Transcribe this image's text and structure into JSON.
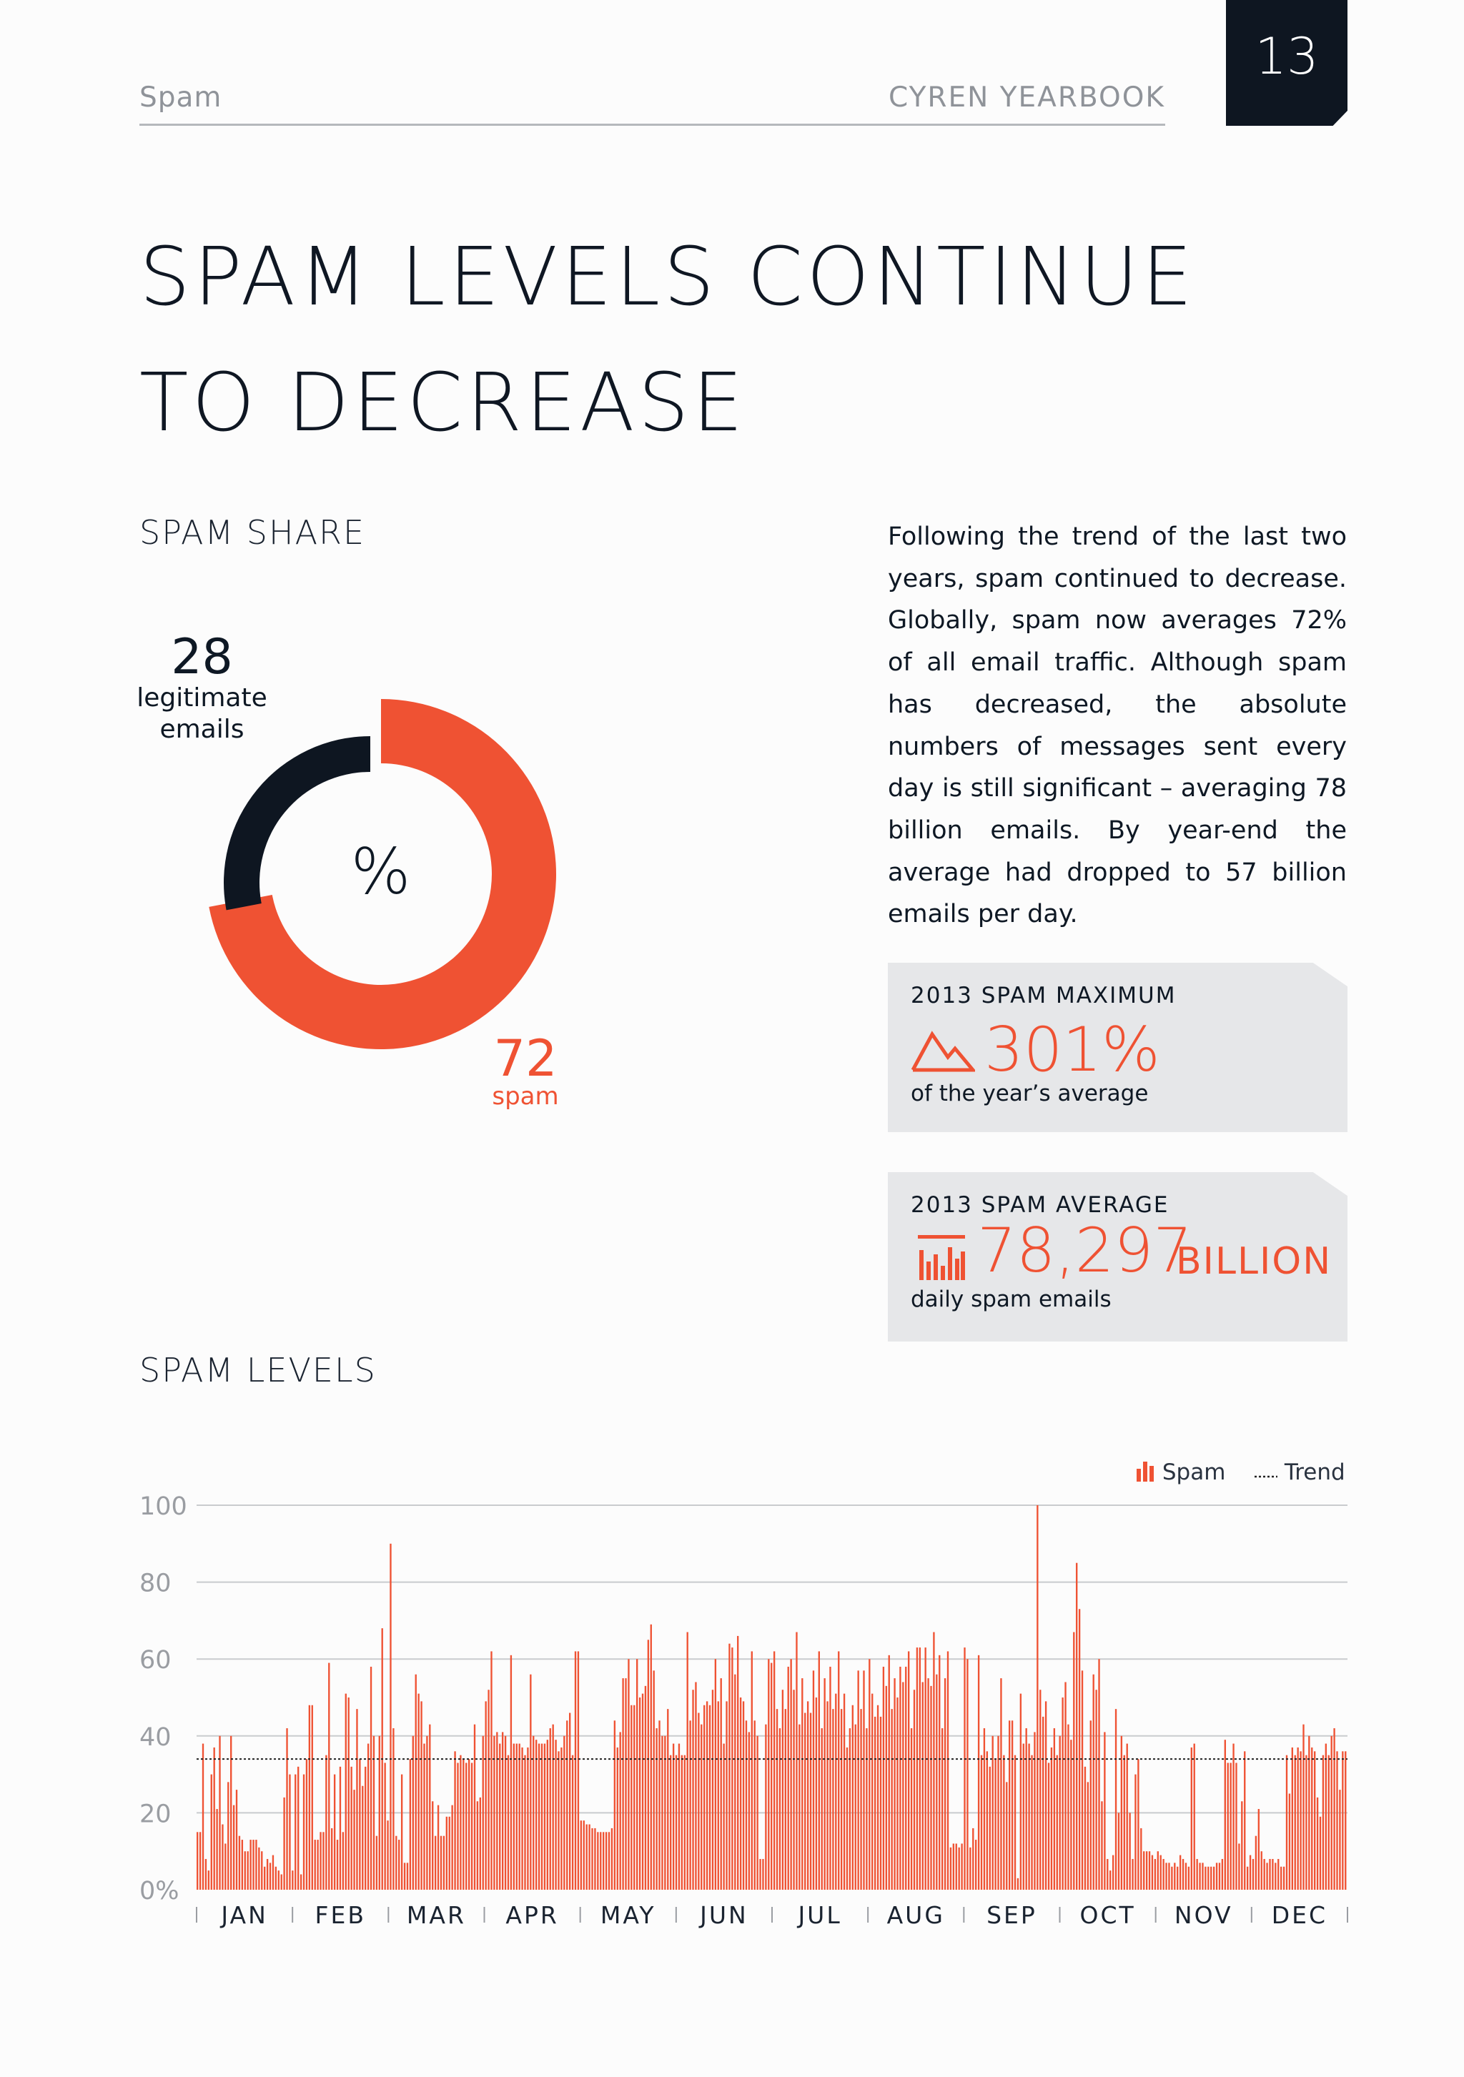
{
  "header": {
    "section": "Spam",
    "book": "CYREN YEARBOOK",
    "page_number": "13"
  },
  "title": {
    "line1": "SPAM LEVELS CONTINUE",
    "line2": "TO DECREASE"
  },
  "spam_share": {
    "heading": "SPAM SHARE",
    "legit_value": "28",
    "legit_label": "legitimate emails",
    "center_symbol": "%",
    "spam_value": "72",
    "spam_label": "spam",
    "colors": {
      "spam": "#ef5233",
      "legit": "#0e1621"
    }
  },
  "body_text": "Following the trend of the last two years, spam continued to decrease. Globally, spam now averages 72% of all email traffic. Although spam has decreased, the absolute numbers of messages sent every day is still significant – averaging 78 billion emails. By year-end the average had dropped to 57 billion emails per day.",
  "stats": {
    "maximum": {
      "title": "2013 SPAM MAXIMUM",
      "value": "301%",
      "caption": "of the year’s average",
      "icon": "mountain-peak-icon"
    },
    "average": {
      "title": "2013 SPAM AVERAGE",
      "value": "78,297",
      "unit": "BILLION",
      "caption": "daily spam emails",
      "icon": "bar-chart-icon"
    }
  },
  "spam_levels": {
    "heading": "SPAM LEVELS",
    "legend": {
      "spam": "Spam",
      "trend": "Trend"
    }
  },
  "chart_data": {
    "type": "bar",
    "title": "SPAM LEVELS",
    "ylim": [
      0,
      100
    ],
    "yticks": [
      0,
      20,
      40,
      60,
      80,
      100
    ],
    "ytick_labels": [
      "0%",
      "20",
      "40",
      "60",
      "80",
      "100"
    ],
    "months": [
      "JAN",
      "FEB",
      "MAR",
      "APR",
      "MAY",
      "JUN",
      "JUL",
      "AUG",
      "SEP",
      "OCT",
      "NOV",
      "DEC"
    ],
    "grid": true,
    "legend_position": "top-right",
    "colors": {
      "bar": "#ef5233",
      "grid": "#c9cbce",
      "trend": "#222222"
    },
    "series": [
      {
        "name": "Spam",
        "values": [
          15,
          15,
          38,
          8,
          5,
          30,
          37,
          21,
          40,
          17,
          12,
          28,
          40,
          22,
          26,
          14,
          13,
          10,
          10,
          13,
          13,
          13,
          11,
          10,
          6,
          8,
          7,
          9,
          6,
          5,
          4,
          24,
          42,
          30,
          5,
          30,
          32,
          4,
          30,
          34,
          48,
          48,
          13,
          13,
          15,
          15,
          35,
          59,
          16,
          30,
          13,
          32,
          15,
          51,
          50,
          32,
          26,
          47,
          34,
          27,
          32,
          38,
          58,
          40,
          14,
          40,
          68,
          33,
          18,
          90,
          42,
          14,
          13,
          30,
          7,
          7,
          34,
          40,
          56,
          51,
          49,
          38,
          40,
          43,
          23,
          14,
          22,
          14,
          14,
          19,
          19,
          22,
          36,
          33,
          35,
          34,
          33,
          34,
          33,
          43,
          23,
          24,
          40,
          49,
          52,
          62,
          40,
          41,
          38,
          41,
          40,
          35,
          61,
          38,
          38,
          38,
          37,
          35,
          37,
          56,
          40,
          39,
          38,
          38,
          38,
          39,
          42,
          43,
          39,
          36,
          37,
          40,
          44,
          46,
          35,
          62,
          62,
          18,
          18,
          17,
          17,
          16,
          16,
          15,
          15,
          15,
          15,
          15,
          16,
          44,
          37,
          41,
          55,
          55,
          60,
          48,
          48,
          60,
          50,
          51,
          53,
          65,
          69,
          57,
          42,
          44,
          40,
          40,
          47,
          35,
          38,
          35,
          38,
          35,
          35,
          67,
          44,
          52,
          54,
          46,
          43,
          48,
          49,
          48,
          52,
          60,
          49,
          55,
          38,
          49,
          64,
          63,
          56,
          66,
          50,
          49,
          44,
          41,
          62,
          44,
          40,
          8,
          8,
          43,
          60,
          59,
          62,
          47,
          42,
          52,
          47,
          58,
          60,
          52,
          67,
          43,
          55,
          46,
          49,
          46,
          57,
          50,
          62,
          42,
          55,
          49,
          58,
          47,
          51,
          62,
          47,
          51,
          37,
          42,
          48,
          43,
          57,
          47,
          57,
          42,
          60,
          51,
          45,
          48,
          45,
          58,
          53,
          61,
          47,
          55,
          50,
          58,
          54,
          58,
          62,
          42,
          52,
          63,
          63,
          54,
          63,
          55,
          53,
          67,
          56,
          61,
          42,
          55,
          62,
          11,
          12,
          12,
          11,
          12,
          63,
          60,
          11,
          16,
          13,
          61,
          35,
          42,
          36,
          32,
          40,
          34,
          40,
          55,
          35,
          28,
          44,
          44,
          35,
          3,
          51,
          38,
          42,
          38,
          35,
          41,
          100,
          52,
          45,
          49,
          33,
          37,
          42,
          35,
          40,
          50,
          54,
          43,
          39,
          67,
          85,
          73,
          57,
          32,
          28,
          44,
          56,
          52,
          60,
          23,
          41,
          8,
          5,
          9,
          47,
          20,
          40,
          35,
          38,
          20,
          8,
          30,
          34,
          16,
          10,
          10,
          10,
          9,
          8,
          10,
          9,
          8,
          7,
          7,
          6,
          7,
          6,
          9,
          8,
          7,
          6,
          37,
          38,
          8,
          7,
          7,
          6,
          6,
          6,
          6,
          7,
          7,
          8,
          39,
          33,
          33,
          38,
          33,
          12,
          23,
          36,
          6,
          9,
          8,
          14,
          21,
          10,
          8,
          7,
          8,
          8,
          7,
          8,
          6,
          6,
          35,
          25,
          37,
          35,
          37,
          36,
          43,
          35,
          40,
          37,
          36,
          24,
          19,
          35,
          38,
          35,
          40,
          42,
          36,
          26,
          36,
          36
        ]
      },
      {
        "name": "Trend",
        "value": 34
      }
    ]
  }
}
